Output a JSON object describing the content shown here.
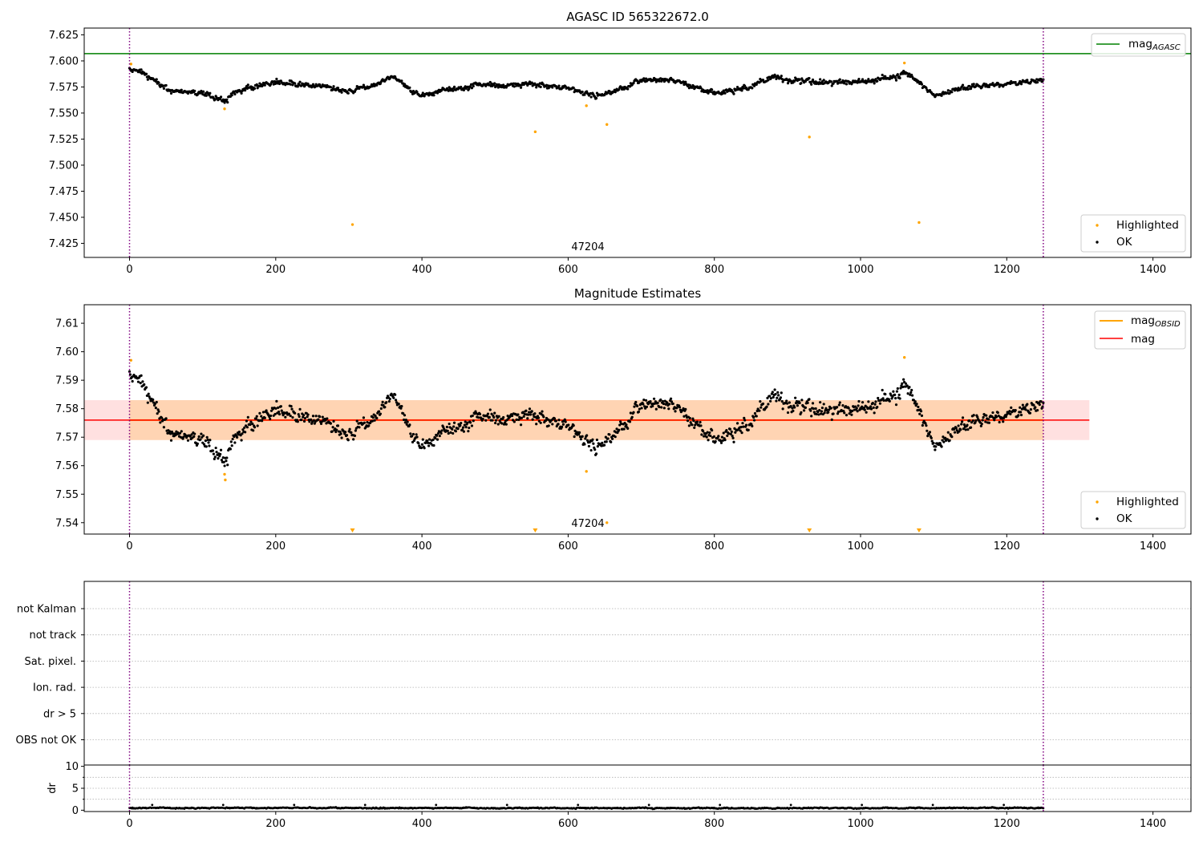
{
  "figure": {
    "annotation": "47204"
  },
  "chart_data": [
    {
      "type": "scatter",
      "title": "AGASC ID 565322672.0",
      "xlim": [
        -62,
        1452
      ],
      "ylim": [
        7.4115,
        7.6315
      ],
      "xticks": [
        0,
        200,
        400,
        600,
        800,
        1000,
        1200,
        1400
      ],
      "xtick_labels": [
        "0",
        "200",
        "400",
        "600",
        "800",
        "1000",
        "1200",
        "1400"
      ],
      "yticks": [
        7.425,
        7.45,
        7.475,
        7.5,
        7.525,
        7.55,
        7.575,
        7.6,
        7.625
      ],
      "ytick_labels": [
        "7.425",
        "7.450",
        "7.475",
        "7.500",
        "7.525",
        "7.550",
        "7.575",
        "7.600",
        "7.625"
      ],
      "vlines": [
        0,
        1250
      ],
      "mag_agasc": 7.607,
      "highlighted": {
        "x": [
          2,
          130,
          305,
          555,
          625,
          653,
          930,
          1060,
          1080
        ],
        "y": [
          7.597,
          7.554,
          7.443,
          7.532,
          7.557,
          7.539,
          7.527,
          7.598,
          7.445
        ]
      },
      "ok_series": {
        "n_points": 1250,
        "x_range": [
          0,
          1250
        ],
        "mean": 7.576,
        "note_values": "dense time series; sampled envelope below",
        "x": [
          0,
          20,
          40,
          60,
          80,
          100,
          130,
          150,
          200,
          250,
          300,
          340,
          360,
          400,
          450,
          500,
          550,
          600,
          640,
          680,
          700,
          750,
          800,
          850,
          880,
          900,
          950,
          1000,
          1050,
          1060,
          1100,
          1150,
          1200,
          1240
        ],
        "y": [
          7.593,
          7.588,
          7.578,
          7.571,
          7.569,
          7.57,
          7.561,
          7.572,
          7.58,
          7.577,
          7.571,
          7.578,
          7.585,
          7.566,
          7.574,
          7.577,
          7.578,
          7.574,
          7.566,
          7.575,
          7.582,
          7.58,
          7.569,
          7.575,
          7.585,
          7.581,
          7.579,
          7.58,
          7.585,
          7.59,
          7.567,
          7.575,
          7.578,
          7.582
        ]
      },
      "legend": [
        {
          "label": "mag",
          "sub": "AGASC",
          "kind": "line",
          "color": "#008000"
        },
        {
          "label": "Highlighted",
          "kind": "point",
          "color": "#ffa500"
        },
        {
          "label": "OK",
          "kind": "point",
          "color": "#000000"
        }
      ]
    },
    {
      "type": "scatter",
      "title": "Magnitude Estimates",
      "xlim": [
        -62,
        1452
      ],
      "ylim": [
        7.536,
        7.6165
      ],
      "xticks": [
        0,
        200,
        400,
        600,
        800,
        1000,
        1200,
        1400
      ],
      "xtick_labels": [
        "0",
        "200",
        "400",
        "600",
        "800",
        "1000",
        "1200",
        "1400"
      ],
      "yticks": [
        7.54,
        7.55,
        7.56,
        7.57,
        7.58,
        7.59,
        7.6,
        7.61
      ],
      "ytick_labels": [
        "7.54",
        "7.55",
        "7.56",
        "7.57",
        "7.58",
        "7.59",
        "7.60",
        "7.61"
      ],
      "vlines": [
        0,
        1250
      ],
      "mag": 7.576,
      "band": [
        7.569,
        7.583
      ],
      "band_x": [
        -62,
        1313
      ],
      "obsid_band_x": [
        0,
        1250
      ],
      "highlighted": {
        "x": [
          2,
          130,
          131,
          625,
          653,
          1060
        ],
        "y": [
          7.597,
          7.557,
          7.555,
          7.558,
          7.54,
          7.598
        ]
      },
      "clipped_low_x": [
        305,
        555,
        930,
        1080
      ],
      "ok_series": {
        "n_points": 1250,
        "x_range": [
          0,
          1250
        ],
        "mean": 7.576,
        "x": [
          0,
          20,
          40,
          60,
          80,
          100,
          130,
          150,
          200,
          250,
          300,
          340,
          360,
          400,
          450,
          500,
          550,
          600,
          640,
          680,
          700,
          750,
          800,
          850,
          880,
          900,
          950,
          1000,
          1050,
          1060,
          1100,
          1150,
          1200,
          1240
        ],
        "y": [
          7.593,
          7.588,
          7.578,
          7.571,
          7.569,
          7.57,
          7.561,
          7.572,
          7.58,
          7.577,
          7.571,
          7.578,
          7.585,
          7.566,
          7.574,
          7.577,
          7.578,
          7.574,
          7.566,
          7.575,
          7.582,
          7.58,
          7.569,
          7.575,
          7.585,
          7.581,
          7.579,
          7.58,
          7.585,
          7.59,
          7.567,
          7.575,
          7.578,
          7.582
        ]
      },
      "legend_top": [
        {
          "label": "mag",
          "sub": "OBSID",
          "kind": "line",
          "color": "#ffa500"
        },
        {
          "label": "mag",
          "kind": "line",
          "color": "#ff0000"
        }
      ],
      "legend_bottom": [
        {
          "label": "Highlighted",
          "kind": "point",
          "color": "#ffa500"
        },
        {
          "label": "OK",
          "kind": "point",
          "color": "#000000"
        }
      ]
    },
    {
      "type": "table",
      "flags": [
        "not Kalman",
        "not track",
        "Sat. pixel.",
        "Ion. rad.",
        "dr > 5",
        "OBS not OK"
      ],
      "flag_counts": [
        0,
        0,
        0,
        0,
        0,
        0
      ],
      "vlines": [
        0,
        1250
      ],
      "xlim": [
        -62,
        1452
      ]
    },
    {
      "type": "line",
      "ylabel": "dr",
      "xlim": [
        -62,
        1452
      ],
      "ylim": [
        -0.3,
        10.3
      ],
      "xticks": [
        0,
        200,
        400,
        600,
        800,
        1000,
        1200,
        1400
      ],
      "xtick_labels": [
        "0",
        "200",
        "400",
        "600",
        "800",
        "1000",
        "1200",
        "1400"
      ],
      "yticks": [
        0,
        5,
        10
      ],
      "ytick_labels": [
        "0",
        "5",
        "10"
      ],
      "grid_y": [
        2.5,
        5,
        7.5
      ],
      "vlines": [
        0,
        1250
      ],
      "dr_series": {
        "n_points": 1250,
        "x_range": [
          0,
          1250
        ],
        "typical": 0.5,
        "max": 1.2
      }
    }
  ]
}
